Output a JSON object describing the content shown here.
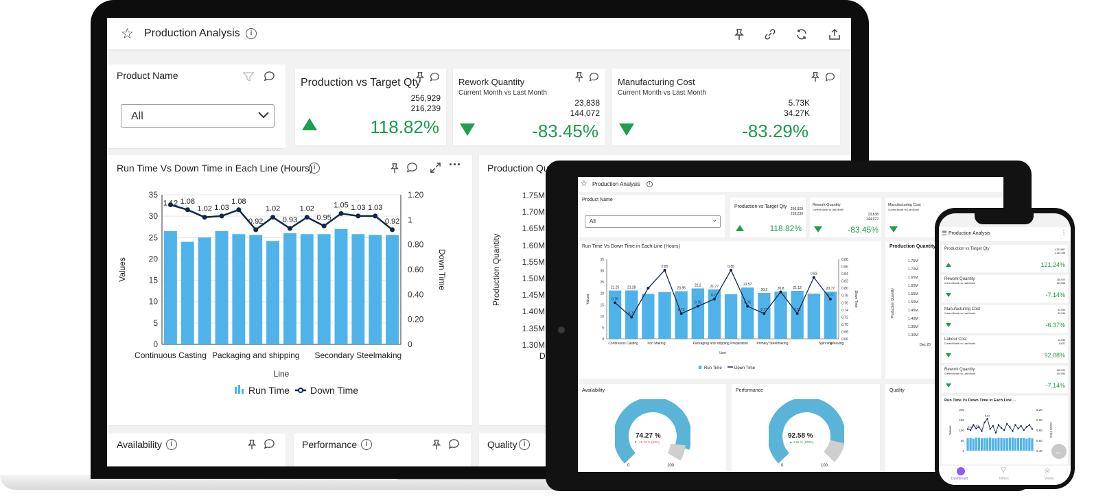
{
  "laptop": {
    "header": {
      "title": "Production Analysis"
    },
    "filter": {
      "label": "Product Name",
      "selected": "All"
    },
    "kpis": [
      {
        "title": "Production vs Target Qty",
        "subtitle": "",
        "value1": "256,929",
        "value2": "216,239",
        "percent": "118.82%",
        "trend": "up"
      },
      {
        "title": "Rework Quantity",
        "subtitle": "Current Month vs Last Month",
        "value1": "23,838",
        "value2": "144,072",
        "percent": "-83.45%",
        "trend": "down"
      },
      {
        "title": "Manufacturing Cost",
        "subtitle": "Current Month vs Last Month",
        "value1": "5.73K",
        "value2": "34.27K",
        "percent": "-83.29%",
        "trend": "down"
      }
    ],
    "run_chart_title": "Run Time Vs Down Time in Each Line (Hours)",
    "prod_chart_title": "Production Qu",
    "prod_chart_ylabel": "Production Quantity",
    "prod_ticks": [
      "1.75M",
      "1.70M",
      "1.65M",
      "1.60M",
      "1.55M",
      "1.50M",
      "1.45M",
      "1.40M",
      "1.35M",
      "1.30M"
    ],
    "prod_xlabel_fragment": "De",
    "bottom_titles": [
      "Availability",
      "Performance",
      "Quality"
    ]
  },
  "chart_data": {
    "type": "bar",
    "title": "Run Time Vs Down Time in Each Line (Hours)",
    "xlabel": "Line",
    "ylabel": "Values",
    "y2label": "Down Time",
    "ylim": [
      0,
      35
    ],
    "y2lim": [
      0,
      1.2
    ],
    "yticks": [
      "35",
      "30",
      "25",
      "20",
      "15",
      "10",
      "5",
      "0"
    ],
    "y2ticks": [
      "1.20",
      "1",
      "0.80",
      "0.60",
      "0.40",
      "0.20",
      "0"
    ],
    "x_tick_labels": [
      "Continuous Casting",
      "Packaging and shipping",
      "Secondary Steelmaking"
    ],
    "series": [
      {
        "name": "Run Time",
        "type": "bar",
        "color": "#4fb3ea",
        "values": [
          26.5,
          24.0,
          25.0,
          26.5,
          25.8,
          25.6,
          24.2,
          26.0,
          25.8,
          25.8,
          27.0,
          25.8,
          25.6,
          25.6
        ]
      },
      {
        "name": "Down Time",
        "type": "line",
        "color": "#12264a",
        "values": [
          1.12,
          1.08,
          1.02,
          1.03,
          1.08,
          0.92,
          1.02,
          0.93,
          1.02,
          0.95,
          1.05,
          1.03,
          1.03,
          0.92
        ],
        "labels": [
          "1.12",
          "1.08",
          "1.02",
          "1.03",
          "1.08",
          "0.92",
          "1.02",
          "0.93",
          "1.02",
          "0.95",
          "1.05",
          "1.03",
          "1.03",
          "0.92"
        ]
      }
    ],
    "legend": [
      "Run Time",
      "Down Time"
    ],
    "legend_position": "bottom"
  },
  "tablet": {
    "title": "Production Analysis",
    "filter": {
      "label": "Product Name",
      "selected": "All"
    },
    "kpis": [
      {
        "title": "Production vs Target Qty",
        "value1": "256,929",
        "value2": "216,239",
        "percent": "118.82%"
      },
      {
        "title": "Rework Quantity",
        "sub": "Current Month vs Last Month",
        "value1": "23,838",
        "value2": "144,072",
        "percent": "-83.45%"
      },
      {
        "title": "Manufacturing Cost",
        "sub": "Current Month vs Last Month",
        "value1": "",
        "value2": "",
        "percent": ""
      }
    ],
    "chart": {
      "title": "Run Time Vs Down Time in Each Line (Hours)",
      "bar_labels": [
        "21.25",
        "21.28",
        "",
        "",
        "20.95",
        "22.2",
        "21.77",
        "",
        "22.57",
        "20.2",
        "20.8",
        "21.12",
        "",
        "20.77"
      ],
      "line_labels": [
        "0.76",
        "0.72",
        "",
        "0.85",
        "0.73",
        "0.75",
        "0.77",
        "0.85",
        "0.75",
        "0.73",
        "",
        "0.73",
        "0.83",
        "0.77"
      ],
      "y_ticks": [
        "35",
        "30",
        "25",
        "20",
        "15",
        "10",
        "5",
        "0"
      ],
      "y2_ticks": [
        "0.88",
        "0.86",
        "0.84",
        "0.82",
        "0.80",
        "0.78",
        "0.76",
        "0.74",
        "0.72",
        "0.70",
        "0.68",
        "0.66"
      ],
      "x_labels": [
        "Continuous Casting",
        "Iron Making",
        "Packaging and shipping",
        "Preparation",
        "Primary Steelmaking",
        "Spinning",
        "Weaving"
      ],
      "xlabel": "Line",
      "ylabel": "Values",
      "y2label": "Down Time",
      "legend": [
        "Run Time",
        "Down Time"
      ]
    },
    "prod_title": "Production Quantity",
    "prod_ylabel": "Production Quantity",
    "prod_ticks": [
      "1.75M",
      "1.70M",
      "1.65M",
      "1.60M",
      "1.55M",
      "1.50M",
      "1.45M",
      "1.40M",
      "1.35M",
      "1.30M"
    ],
    "prod_x": "Dec 20",
    "gauges": [
      {
        "title": "Availability",
        "value": "74.27 %",
        "delta": "▼ -15.73 % (53%)",
        "min": "0",
        "max": "100"
      },
      {
        "title": "Performance",
        "value": "92.58 %",
        "delta": "▲ 2.58 % (103%)",
        "min": "0",
        "max": "100"
      },
      {
        "title": "Quality"
      }
    ]
  },
  "phone": {
    "title": "Production Analysis",
    "kpis": [
      {
        "title": "Production vs Target Qty",
        "sub": "",
        "v1": "1,333,867",
        "v2": "1,100,198",
        "pct": "121.24%",
        "trend": "up"
      },
      {
        "title": "Rework Quantity",
        "sub": "Current Month vs Last Month",
        "v1": "138,920",
        "v2": "149,595",
        "pct": "-7.14%",
        "trend": "down"
      },
      {
        "title": "Manufacturing Cost",
        "sub": "Current Month vs Last Month",
        "v1": "32,994",
        "v2": "35,236",
        "pct": "-6.37%",
        "trend": "down"
      },
      {
        "title": "Labour Cost",
        "sub": "Current Month vs Last Month",
        "v1": "16,936",
        "v2": "8,822",
        "pct": "92.08%",
        "trend": "down"
      },
      {
        "title": "Rework Quantity",
        "sub": "Current Month vs Last Month",
        "v1": "138,920",
        "v2": "149,595",
        "pct": "-7.14%",
        "trend": "down"
      }
    ],
    "chart_title": "Run Time Vs Down Time in Each Line ...",
    "y_ticks": [
      "200",
      "150",
      "100",
      "50",
      "0"
    ],
    "y2_ticks": [
      "6.20",
      "6.00",
      "5.80",
      "5.60",
      "5.40"
    ],
    "labels": [
      "5.82",
      "5.83",
      "6.02"
    ],
    "ylabel": "Values",
    "y2label": "Down Time",
    "nav": [
      "Dashboard",
      "Filters",
      "Views"
    ]
  },
  "colors": {
    "accent": "#4fb3ea",
    "navy": "#12264a",
    "green": "#1c9b4d",
    "red": "#e04848",
    "nav_active": "#8a5cf6"
  }
}
